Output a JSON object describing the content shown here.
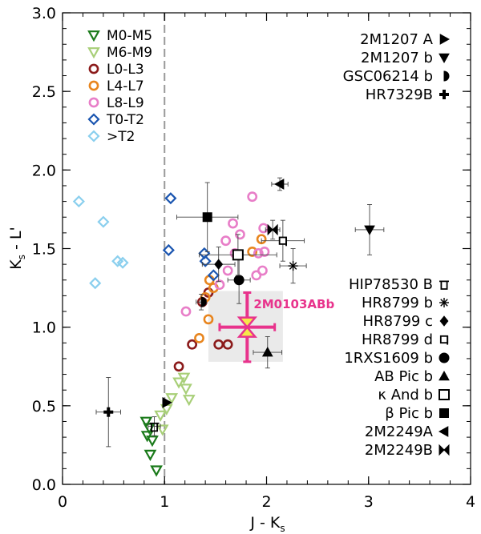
{
  "chart_data": {
    "type": "scatter",
    "title": "",
    "xlabel": "J - K",
    "xlabel_sub": "s",
    "ylabel": "K",
    "ylabel_sub": "s",
    "ylabel_tail": " - L'",
    "xlim": [
      0,
      4
    ],
    "ylim": [
      0,
      3
    ],
    "xticks": [
      "0",
      "1",
      "2",
      "3",
      "4"
    ],
    "yticks": [
      "0.0",
      "0.5",
      "1.0",
      "1.5",
      "2.0",
      "2.5",
      "3.0"
    ],
    "x_minor_step": 0.2,
    "y_minor_step": 0.1,
    "reference_line_x": 1.0,
    "highlight": {
      "label": "2M0103ABb",
      "x": 1.81,
      "y": 1.0,
      "xerr": 0.27,
      "yerr": 0.22,
      "box_x": [
        1.43,
        2.16
      ],
      "box_y": [
        0.78,
        1.23
      ],
      "color": "#e8338c"
    },
    "field_series": [
      {
        "name": "M0-M5",
        "marker": "tri-down",
        "color": "#1a7a1a",
        "fill": "none",
        "points": [
          [
            0.82,
            0.4
          ],
          [
            0.85,
            0.36
          ],
          [
            0.83,
            0.31
          ],
          [
            0.88,
            0.28
          ],
          [
            0.86,
            0.19
          ],
          [
            0.92,
            0.09
          ]
        ]
      },
      {
        "name": "M6-M9",
        "marker": "tri-down",
        "color": "#a8cf78",
        "fill": "none",
        "points": [
          [
            0.96,
            0.44
          ],
          [
            1.02,
            0.48
          ],
          [
            0.98,
            0.35
          ],
          [
            1.07,
            0.55
          ],
          [
            1.14,
            0.65
          ],
          [
            1.21,
            0.61
          ],
          [
            1.24,
            0.54
          ],
          [
            1.19,
            0.68
          ]
        ]
      },
      {
        "name": "L0-L3",
        "marker": "circle",
        "color": "#8b1a1a",
        "fill": "none",
        "points": [
          [
            1.14,
            0.75
          ],
          [
            1.27,
            0.89
          ],
          [
            1.53,
            0.89
          ],
          [
            1.43,
            1.22
          ],
          [
            1.37,
            1.16
          ],
          [
            1.62,
            0.89
          ]
        ]
      },
      {
        "name": "L4-L7",
        "marker": "circle",
        "color": "#e8851e",
        "fill": "none",
        "points": [
          [
            1.34,
            0.93
          ],
          [
            1.44,
            1.3
          ],
          [
            1.4,
            1.19
          ],
          [
            1.48,
            1.25
          ],
          [
            1.86,
            1.48
          ],
          [
            1.95,
            1.56
          ],
          [
            1.43,
            1.05
          ]
        ]
      },
      {
        "name": "L8-L9",
        "marker": "circle",
        "color": "#e87ec8",
        "fill": "none",
        "points": [
          [
            1.62,
            1.36
          ],
          [
            1.67,
            1.66
          ],
          [
            1.74,
            1.59
          ],
          [
            1.86,
            1.83
          ],
          [
            1.96,
            1.36
          ],
          [
            1.98,
            1.48
          ],
          [
            1.54,
            1.27
          ],
          [
            1.6,
            1.55
          ],
          [
            1.9,
            1.33
          ],
          [
            1.69,
            1.47
          ],
          [
            1.21,
            1.1
          ],
          [
            1.97,
            1.63
          ],
          [
            1.92,
            1.47
          ]
        ]
      },
      {
        "name": "T0-T2",
        "marker": "diamond",
        "color": "#1a55b0",
        "fill": "none",
        "points": [
          [
            1.06,
            1.82
          ],
          [
            1.04,
            1.49
          ],
          [
            1.39,
            1.47
          ],
          [
            1.4,
            1.42
          ],
          [
            1.48,
            1.33
          ]
        ]
      },
      {
        "name": ">T2",
        "marker": "diamond",
        "color": "#8acfee",
        "fill": "none",
        "points": [
          [
            0.16,
            1.8
          ],
          [
            0.4,
            1.67
          ],
          [
            0.54,
            1.42
          ],
          [
            0.59,
            1.41
          ],
          [
            0.32,
            1.28
          ]
        ]
      }
    ],
    "companions_top": [
      {
        "name": "2M1207 A",
        "marker": "tri-right"
      },
      {
        "name": "2M1207 b",
        "marker": "tri-down-fill"
      },
      {
        "name": "GSC06214 b",
        "marker": "half-circle"
      },
      {
        "name": "HR7329B",
        "marker": "plus-bold"
      }
    ],
    "companions_bottom": [
      {
        "name": "HIP78530 B",
        "marker": "cup"
      },
      {
        "name": "HR8799 b",
        "marker": "asterisk"
      },
      {
        "name": "HR8799 c",
        "marker": "diamond-fill"
      },
      {
        "name": "HR8799 d",
        "marker": "flag"
      },
      {
        "name": "1RXS1609 b",
        "marker": "circle-fill"
      },
      {
        "name": "AB Pic b",
        "marker": "tri-up-fill"
      },
      {
        "name": "κ And b",
        "marker": "square-open"
      },
      {
        "name": "β Pic b",
        "marker": "square-fill"
      },
      {
        "name": "2M2249A",
        "marker": "tri-left-fill"
      },
      {
        "name": "2M2249B",
        "marker": "bowtie"
      }
    ],
    "companion_points": [
      {
        "name": "2M1207 A",
        "marker": "tri-right",
        "x": 1.02,
        "y": 0.52,
        "xerr": 0.0,
        "yerr": 0.0
      },
      {
        "name": "2M1207 b",
        "marker": "tri-down-fill",
        "x": 3.01,
        "y": 1.62,
        "xerr": 0.14,
        "yerr": 0.16
      },
      {
        "name": "GSC06214 b",
        "marker": "half-circle",
        "x": 1.36,
        "y": 1.16,
        "xerr": 0.05,
        "yerr": 0.05
      },
      {
        "name": "HR7329B",
        "marker": "plus-bold",
        "x": 0.45,
        "y": 0.46,
        "xerr": 0.12,
        "yerr": 0.22
      },
      {
        "name": "HIP78530 B",
        "marker": "cup",
        "x": 0.9,
        "y": 0.37,
        "xerr": 0.06,
        "yerr": 0.06
      },
      {
        "name": "HR8799 b",
        "marker": "asterisk",
        "x": 2.26,
        "y": 1.39,
        "xerr": 0.13,
        "yerr": 0.11
      },
      {
        "name": "HR8799 c",
        "marker": "diamond-fill",
        "x": 1.53,
        "y": 1.4,
        "xerr": 0.16,
        "yerr": 0.11
      },
      {
        "name": "HR8799 d",
        "marker": "flag",
        "x": 2.16,
        "y": 1.55,
        "xerr": 0.21,
        "yerr": 0.13
      },
      {
        "name": "1RXS1609 b",
        "marker": "circle-fill",
        "x": 1.73,
        "y": 1.3,
        "xerr": 0.11,
        "yerr": 0.15
      },
      {
        "name": "AB Pic b",
        "marker": "tri-up-fill",
        "x": 2.01,
        "y": 0.84,
        "xerr": 0.14,
        "yerr": 0.1
      },
      {
        "name": "κ And b",
        "marker": "square-open",
        "x": 1.72,
        "y": 1.46,
        "xerr": 0.38,
        "yerr": 0.13
      },
      {
        "name": "β Pic b",
        "marker": "square-fill",
        "x": 1.42,
        "y": 1.7,
        "xerr": 0.3,
        "yerr": 0.22
      },
      {
        "name": "2M2249A",
        "marker": "tri-left-fill",
        "x": 2.13,
        "y": 1.91,
        "xerr": 0.08,
        "yerr": 0.04
      },
      {
        "name": "2M2249B",
        "marker": "bowtie",
        "x": 2.06,
        "y": 1.62,
        "xerr": 0.07,
        "yerr": 0.06
      }
    ]
  }
}
